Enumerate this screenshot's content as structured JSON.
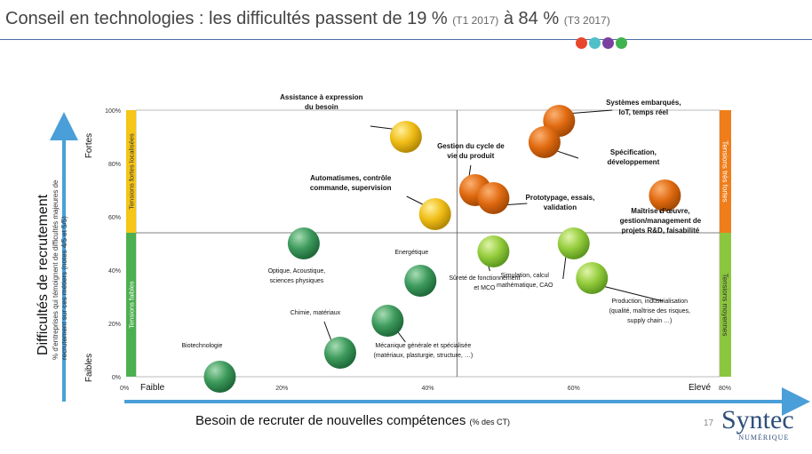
{
  "title": {
    "main": "Conseil en technologies : les difficultés passent de 19 %",
    "q1": "(T1 2017)",
    "mid": "à 84 %",
    "q3": "(T3 2017)"
  },
  "brand_colors": [
    "#e8472b",
    "#4fbfc8",
    "#7a3fa0",
    "#3fb34f"
  ],
  "page_number": "17",
  "logo": {
    "name": "Syntec",
    "sub": "NUMÉRIQUE"
  },
  "chart_data": {
    "type": "scatter",
    "xlabel": "Besoin de recruter de nouvelles compétences",
    "xlabel_unit": "(% des CT)",
    "ylabel": "Difficultés de recrutement",
    "ylabel_sub": "% d'entreprises qui témoignent de difficultés majeures de recrutement sur ces métiers (notes 4/5 et 5/5)",
    "xlim": [
      0,
      80
    ],
    "ylim": [
      0,
      100
    ],
    "x_ticks": [
      "0%",
      "20%",
      "40%",
      "60%",
      "80%"
    ],
    "y_ticks": [
      "0%",
      "20%",
      "40%",
      "60%",
      "80%",
      "100%"
    ],
    "x_divider": 44,
    "y_divider": 54,
    "x_end_labels": {
      "low": "Faible",
      "high": "Elevé"
    },
    "y_end_labels": {
      "low": "Faibles",
      "high": "Fortes"
    },
    "left_bands": [
      {
        "label": "Tensions fortes localisées",
        "color": "#f5c518",
        "from": 54,
        "to": 100
      },
      {
        "label": "Tensions faibles",
        "color": "#4caf50",
        "from": 0,
        "to": 54
      }
    ],
    "right_bands": [
      {
        "label": "Tensions très fortes",
        "color": "#ef7d1a",
        "from": 54,
        "to": 100
      },
      {
        "label": "Tensions moyennes",
        "color": "#8cc63f",
        "from": 0,
        "to": 54
      }
    ],
    "points": [
      {
        "label": "Systèmes embarqués, IoT, temps réel",
        "x": 58,
        "y": 96,
        "category": "very_strong"
      },
      {
        "label": "Spécification, développement",
        "x": 56,
        "y": 88,
        "category": "very_strong"
      },
      {
        "label": "Gestion du cycle de vie du produit",
        "x": 46.5,
        "y": 70,
        "category": "very_strong"
      },
      {
        "label": "Prototypage, essais, validation",
        "x": 49,
        "y": 67,
        "category": "very_strong"
      },
      {
        "label": "Maîtrise d'œuvre, gestion/management de projets R&D, faisabilité",
        "x": 72.5,
        "y": 68,
        "category": "very_strong"
      },
      {
        "label": "Assistance à expression du besoin",
        "x": 37,
        "y": 90,
        "category": "strong_localized"
      },
      {
        "label": "Automatismes, contrôle commande, supervision",
        "x": 41,
        "y": 61,
        "category": "strong_localized"
      },
      {
        "label": "Sûreté de fonctionnement et MCO",
        "x": 49,
        "y": 47,
        "category": "medium"
      },
      {
        "label": "Simulation, calcul mathématique, CAO",
        "x": 60,
        "y": 50,
        "category": "medium"
      },
      {
        "label": "Production, industrialisation (qualité, maîtrise des risques, supply chain …)",
        "x": 62.5,
        "y": 37,
        "category": "medium"
      },
      {
        "label": "Optique, Acoustique, sciences physiques",
        "x": 23,
        "y": 50,
        "category": "weak"
      },
      {
        "label": "Energétique",
        "x": 39,
        "y": 36,
        "category": "weak"
      },
      {
        "label": "Chimie, matériaux",
        "x": 28,
        "y": 9,
        "category": "weak"
      },
      {
        "label": "Mécanique générale et spécialisée (matériaux, plasturgie, structure, …)",
        "x": 34.5,
        "y": 21,
        "category": "weak"
      },
      {
        "label": "Biotechnologie",
        "x": 11.5,
        "y": 0,
        "category": "weak"
      }
    ],
    "category_colors": {
      "very_strong": [
        "#fbb071",
        "#e06a10",
        "#a54a05"
      ],
      "strong_localized": [
        "#fff09a",
        "#f0bd16",
        "#b48a06"
      ],
      "medium": [
        "#e0f4a8",
        "#94cc3c",
        "#5e9820"
      ],
      "weak": [
        "#a6dcb3",
        "#3d9a5c",
        "#1f6a3a"
      ]
    }
  }
}
